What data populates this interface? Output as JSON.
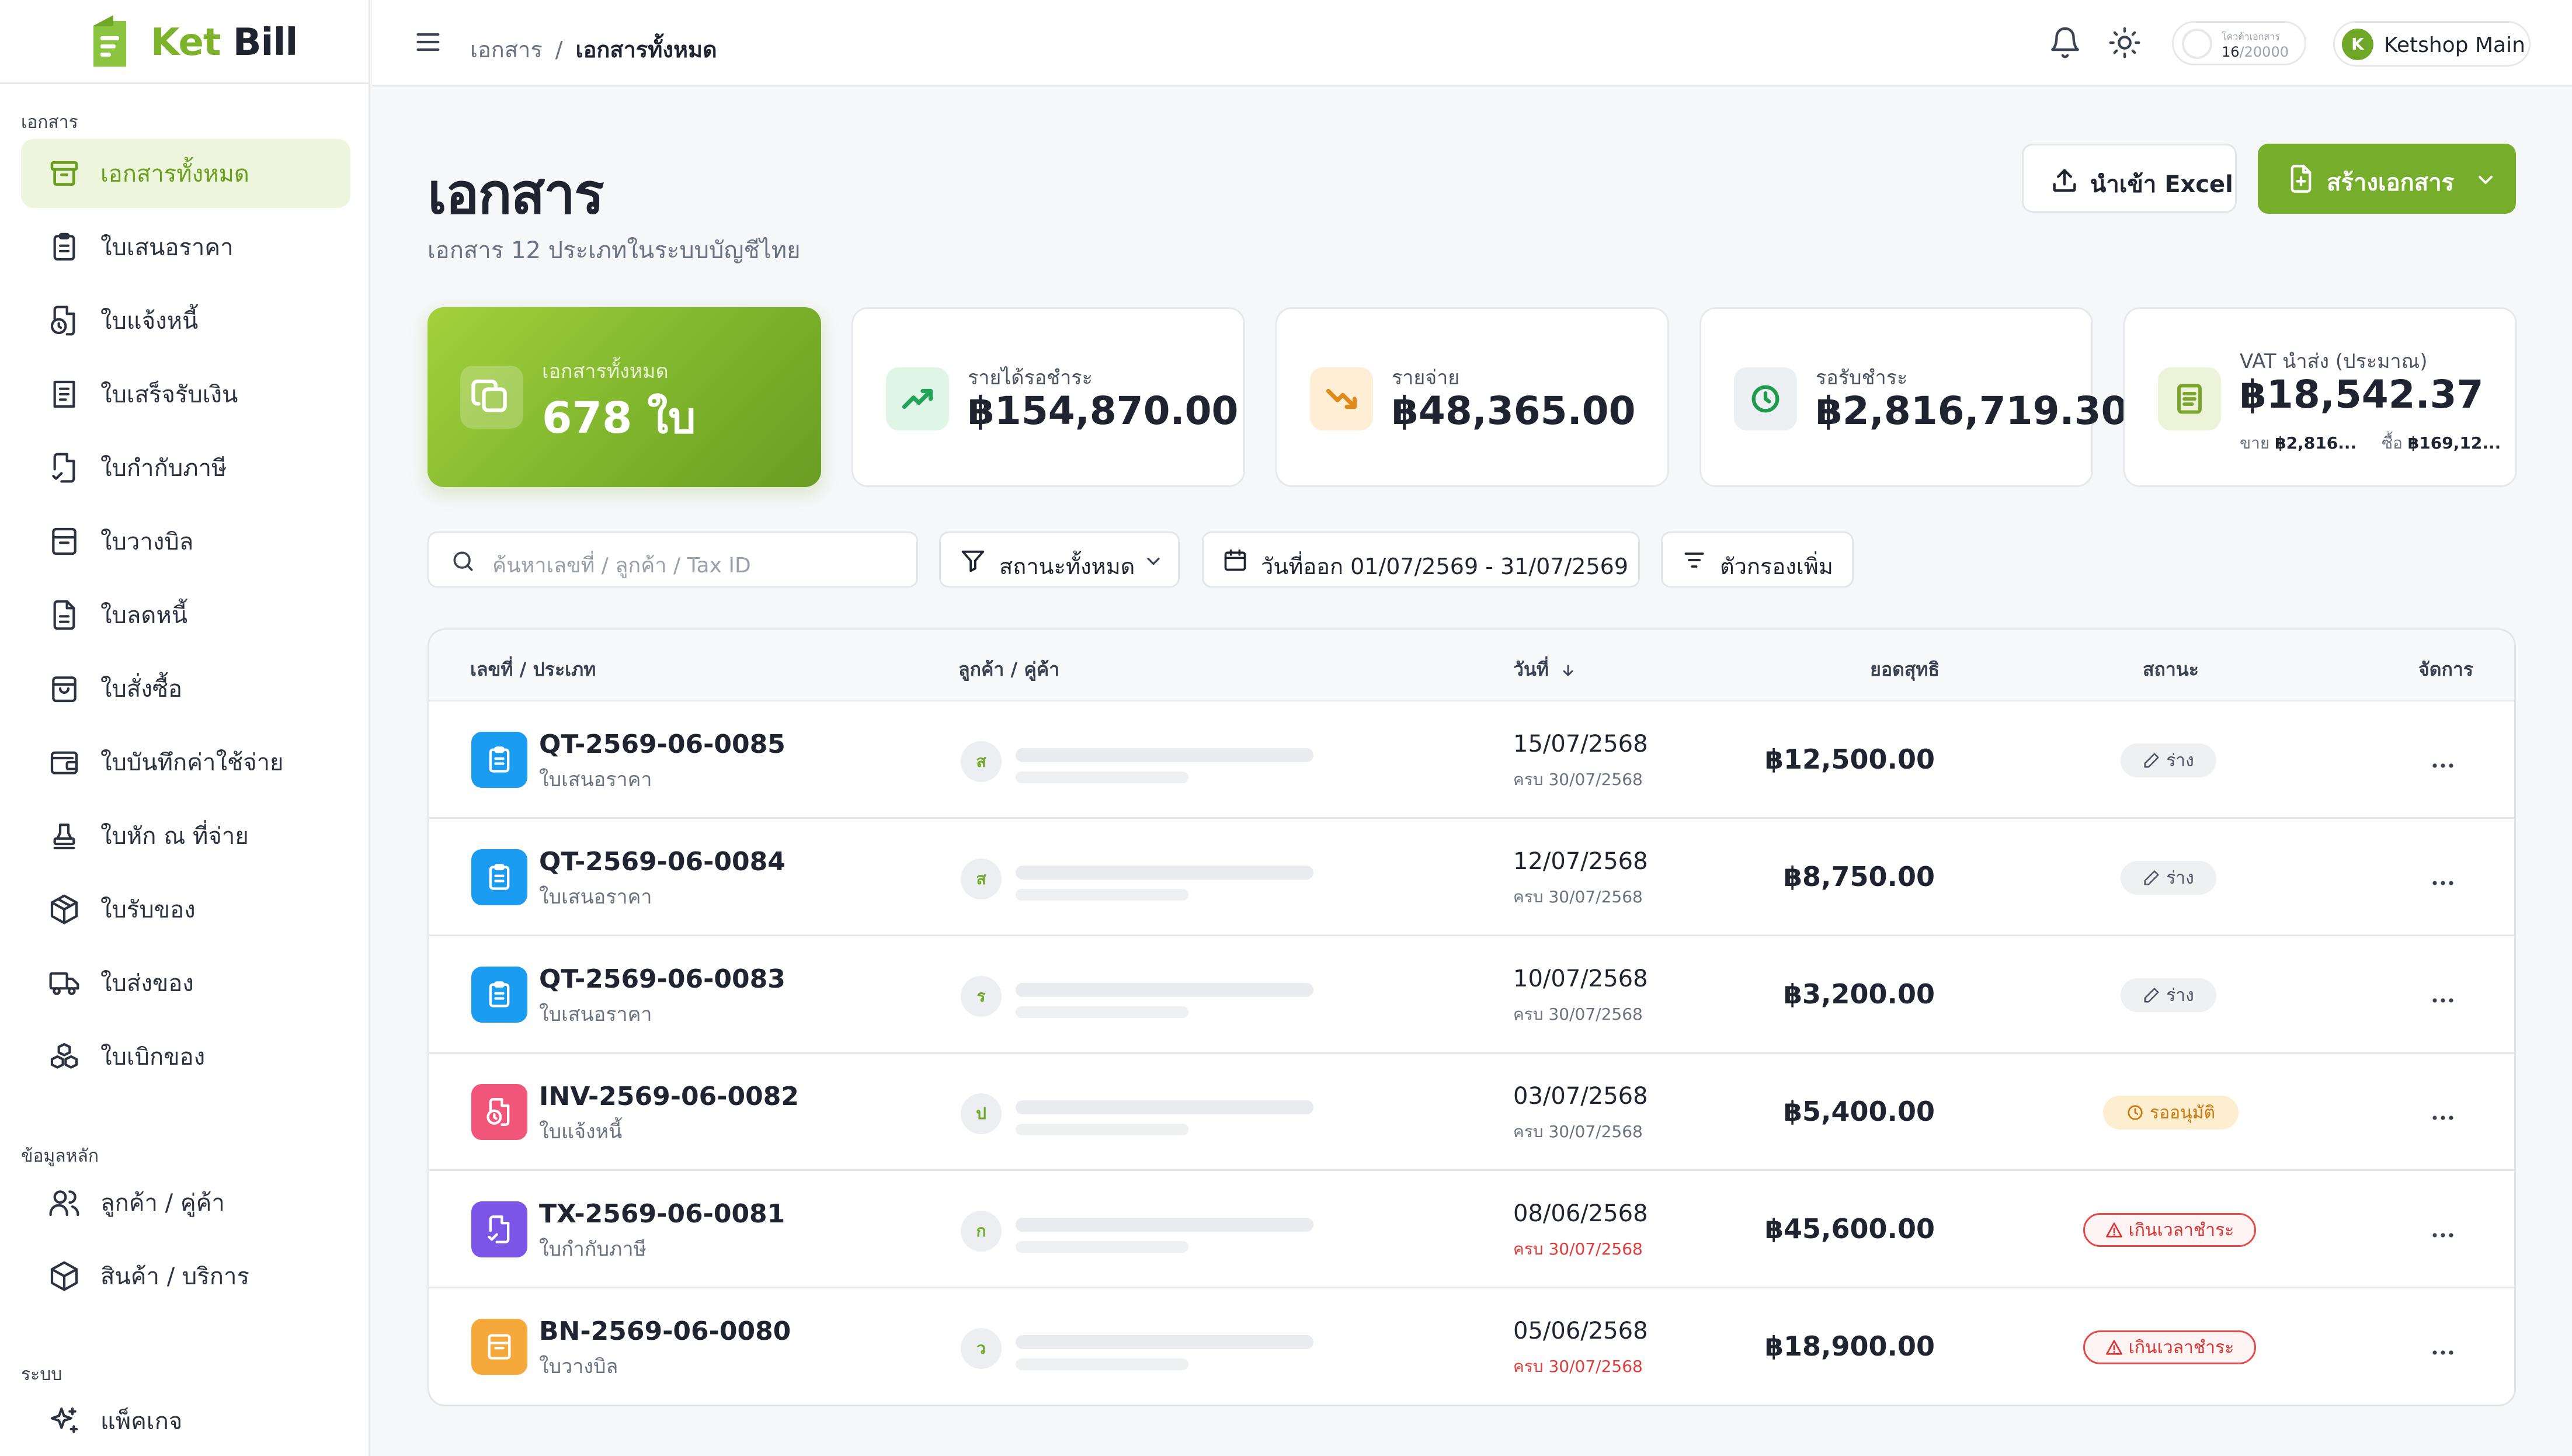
{
  "brand": {
    "name_a": "Ket",
    "name_b": " Bill",
    "accent_color": "#76ad2b"
  },
  "sidebar": {
    "sections": [
      {
        "title": "เอกสาร"
      },
      {
        "title": "ข้อมูลหลัก"
      },
      {
        "title": "ระบบ"
      }
    ],
    "items": [
      {
        "label": "เอกสารทั้งหมด",
        "icon": "archive-icon",
        "active": true
      },
      {
        "label": "ใบเสนอราคา",
        "icon": "clipboard-icon"
      },
      {
        "label": "ใบแจ้งหนี้",
        "icon": "invoice-clock-icon"
      },
      {
        "label": "ใบเสร็จรับเงิน",
        "icon": "receipt-icon"
      },
      {
        "label": "ใบกำกับภาษี",
        "icon": "file-check-icon"
      },
      {
        "label": "ใบวางบิล",
        "icon": "billing-icon"
      },
      {
        "label": "ใบลดหนี้",
        "icon": "file-text-icon"
      },
      {
        "label": "ใบสั่งซื้อ",
        "icon": "shopping-bag-icon"
      },
      {
        "label": "ใบบันทึกค่าใช้จ่าย",
        "icon": "wallet-icon"
      },
      {
        "label": "ใบหัก ณ ที่จ่าย",
        "icon": "stamp-icon"
      },
      {
        "label": "ใบรับของ",
        "icon": "package-icon"
      },
      {
        "label": "ใบส่งของ",
        "icon": "truck-icon"
      },
      {
        "label": "ใบเบิกของ",
        "icon": "boxes-icon"
      },
      {
        "label": "ลูกค้า / คู่ค้า",
        "icon": "users-icon"
      },
      {
        "label": "สินค้า / บริการ",
        "icon": "box-icon"
      },
      {
        "label": "แพ็คเกจ",
        "icon": "sparkles-icon"
      }
    ]
  },
  "topbar": {
    "breadcrumb": [
      "เอกสาร",
      "เอกสารทั้งหมด"
    ],
    "breadcrumb_sep": "/",
    "quota_label": "โควต้าเอกสาร",
    "quota_used": "16",
    "quota_total": "/20000",
    "account_initial": "K",
    "account_name": "Ketshop Main"
  },
  "page": {
    "title": "เอกสาร",
    "subtitle": "เอกสาร 12 ประเภทในระบบบัญชีไทย",
    "import_label": "นำเข้า Excel",
    "create_label": "สร้างเอกสาร"
  },
  "stats": [
    {
      "caption": "เอกสารทั้งหมด",
      "value": "678 ใบ",
      "icon": "copy-icon"
    },
    {
      "caption": "รายได้รอชำระ",
      "value": "฿154,870.00",
      "icon": "trend-up-icon",
      "color": "#22a35a"
    },
    {
      "caption": "รายจ่าย",
      "value": "฿48,365.00",
      "icon": "trend-down-icon",
      "color": "#e08a1a"
    },
    {
      "caption": "รอรับชำระ",
      "value": "฿2,816,719.30",
      "icon": "clock-icon",
      "color": "#1e9a4b"
    },
    {
      "caption": "VAT นำส่ง (ประมาณ)",
      "value": "฿18,542.37",
      "icon": "document-icon",
      "sell_label": "ขาย",
      "sell_value": "฿2,816...",
      "buy_label": "ซื้อ",
      "buy_value": "฿169,12...",
      "color": "#7aa32a"
    }
  ],
  "filters": {
    "search_placeholder": "ค้นหาเลขที่ / ลูกค้า / Tax ID",
    "status_label": "สถานะทั้งหมด",
    "date_label": "วันที่ออก 01/07/2569 - 31/07/2569",
    "more_label": "ตัวกรองเพิ่ม"
  },
  "table": {
    "columns": [
      "เลขที่ / ประเภท",
      "ลูกค้า / คู่ค้า",
      "วันที่",
      "ยอดสุทธิ",
      "สถานะ",
      "จัดการ"
    ],
    "rows": [
      {
        "no": "QT-2569-06-0085",
        "type": "ใบเสนอราคา",
        "initial": "ส",
        "date": "15/07/2568",
        "due": "ครบ 30/07/2568",
        "overdue": false,
        "amount": "฿12,500.00",
        "status": "ร่าง",
        "status_kind": "draft",
        "icon": "clipboard-icon",
        "color": "#1a9cf0"
      },
      {
        "no": "QT-2569-06-0084",
        "type": "ใบเสนอราคา",
        "initial": "ส",
        "date": "12/07/2568",
        "due": "ครบ 30/07/2568",
        "overdue": false,
        "amount": "฿8,750.00",
        "status": "ร่าง",
        "status_kind": "draft",
        "icon": "clipboard-icon",
        "color": "#1a9cf0"
      },
      {
        "no": "QT-2569-06-0083",
        "type": "ใบเสนอราคา",
        "initial": "ร",
        "date": "10/07/2568",
        "due": "ครบ 30/07/2568",
        "overdue": false,
        "amount": "฿3,200.00",
        "status": "ร่าง",
        "status_kind": "draft",
        "icon": "clipboard-icon",
        "color": "#1a9cf0"
      },
      {
        "no": "INV-2569-06-0082",
        "type": "ใบแจ้งหนี้",
        "initial": "ป",
        "date": "03/07/2568",
        "due": "ครบ 30/07/2568",
        "overdue": false,
        "amount": "฿5,400.00",
        "status": "รออนุมัติ",
        "status_kind": "pending",
        "icon": "invoice-clock-icon",
        "color": "#f2557a"
      },
      {
        "no": "TX-2569-06-0081",
        "type": "ใบกำกับภาษี",
        "initial": "ก",
        "date": "08/06/2568",
        "due": "ครบ 30/07/2568",
        "overdue": true,
        "amount": "฿45,600.00",
        "status": "เกินเวลาชำระ",
        "status_kind": "overdue",
        "icon": "file-check-icon",
        "color": "#7b55e6"
      },
      {
        "no": "BN-2569-06-0080",
        "type": "ใบวางบิล",
        "initial": "ว",
        "date": "05/06/2568",
        "due": "ครบ 30/07/2568",
        "overdue": true,
        "amount": "฿18,900.00",
        "status": "เกินเวลาชำระ",
        "status_kind": "overdue",
        "icon": "billing-icon",
        "color": "#f5a93a"
      }
    ]
  }
}
